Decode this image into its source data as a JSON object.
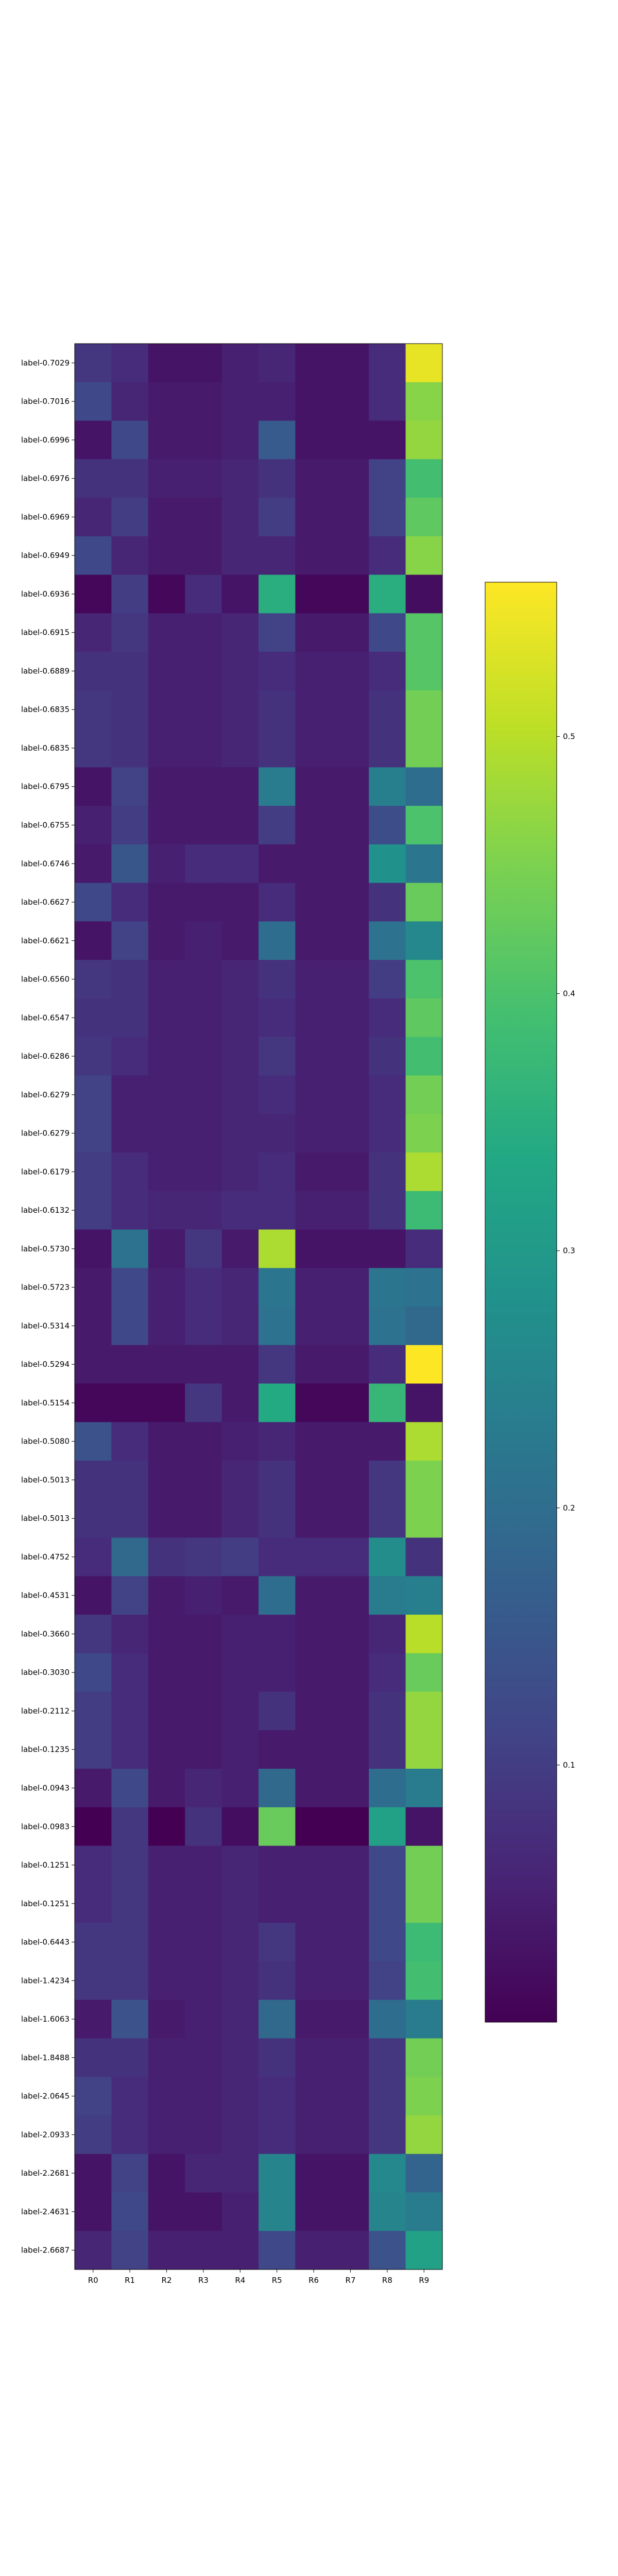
{
  "chart_data": {
    "type": "heatmap",
    "colormap": "viridis",
    "vmin": 0.0,
    "vmax": 0.56,
    "colorbar_ticks": [
      0.1,
      0.2,
      0.3,
      0.4,
      0.5
    ],
    "colorbar_tick_labels": [
      "0.1",
      "0.2",
      "0.3",
      "0.4",
      "0.5"
    ],
    "columns": [
      "R0",
      "R1",
      "R2",
      "R3",
      "R4",
      "R5",
      "R6",
      "R7",
      "R8",
      "R9"
    ],
    "rows": [
      "label-0.7029",
      "label-0.7016",
      "label-0.6996",
      "label-0.6976",
      "label-0.6969",
      "label-0.6949",
      "label-0.6936",
      "label-0.6915",
      "label-0.6889",
      "label-0.6835",
      "label-0.6835",
      "label-0.6795",
      "label-0.6755",
      "label-0.6746",
      "label-0.6627",
      "label-0.6621",
      "label-0.6560",
      "label-0.6547",
      "label-0.6286",
      "label-0.6279",
      "label-0.6279",
      "label-0.6179",
      "label-0.6132",
      "label-0.5730",
      "label-0.5723",
      "label-0.5314",
      "label-0.5294",
      "label-0.5154",
      "label-0.5080",
      "label-0.5013",
      "label-0.5013",
      "label-0.4752",
      "label-0.4531",
      "label-0.3660",
      "label-0.3030",
      "label-0.2112",
      "label-0.1235",
      "label-0.0943",
      "label-0.0983",
      "label-0.1251",
      "label-0.1251",
      "label-0.6443",
      "label-1.4234",
      "label-1.6063",
      "label-1.8488",
      "label-2.0645",
      "label-2.0933",
      "label-2.2681",
      "label-2.4631",
      "label-2.6687"
    ],
    "values": [
      [
        0.09,
        0.07,
        0.03,
        0.03,
        0.05,
        0.06,
        0.03,
        0.03,
        0.07,
        0.54
      ],
      [
        0.12,
        0.06,
        0.04,
        0.04,
        0.05,
        0.05,
        0.03,
        0.03,
        0.07,
        0.46
      ],
      [
        0.03,
        0.12,
        0.04,
        0.04,
        0.05,
        0.16,
        0.03,
        0.03,
        0.03,
        0.47
      ],
      [
        0.08,
        0.08,
        0.05,
        0.05,
        0.06,
        0.08,
        0.04,
        0.04,
        0.11,
        0.39
      ],
      [
        0.06,
        0.1,
        0.04,
        0.04,
        0.06,
        0.1,
        0.04,
        0.04,
        0.11,
        0.42
      ],
      [
        0.12,
        0.06,
        0.04,
        0.04,
        0.06,
        0.06,
        0.04,
        0.04,
        0.07,
        0.46
      ],
      [
        0.01,
        0.1,
        0.01,
        0.07,
        0.03,
        0.35,
        0.01,
        0.01,
        0.35,
        0.02
      ],
      [
        0.06,
        0.09,
        0.05,
        0.05,
        0.06,
        0.11,
        0.04,
        0.04,
        0.12,
        0.41
      ],
      [
        0.08,
        0.08,
        0.05,
        0.05,
        0.06,
        0.07,
        0.05,
        0.05,
        0.07,
        0.41
      ],
      [
        0.09,
        0.08,
        0.05,
        0.05,
        0.06,
        0.08,
        0.05,
        0.05,
        0.08,
        0.44
      ],
      [
        0.09,
        0.08,
        0.05,
        0.05,
        0.06,
        0.08,
        0.05,
        0.05,
        0.08,
        0.44
      ],
      [
        0.03,
        0.11,
        0.04,
        0.04,
        0.04,
        0.23,
        0.04,
        0.04,
        0.24,
        0.2
      ],
      [
        0.05,
        0.1,
        0.04,
        0.04,
        0.04,
        0.1,
        0.04,
        0.04,
        0.13,
        0.4
      ],
      [
        0.04,
        0.15,
        0.05,
        0.07,
        0.07,
        0.04,
        0.04,
        0.04,
        0.28,
        0.22
      ],
      [
        0.12,
        0.07,
        0.04,
        0.04,
        0.04,
        0.07,
        0.04,
        0.04,
        0.08,
        0.43
      ],
      [
        0.03,
        0.11,
        0.04,
        0.05,
        0.04,
        0.2,
        0.04,
        0.04,
        0.21,
        0.26
      ],
      [
        0.09,
        0.08,
        0.05,
        0.05,
        0.06,
        0.08,
        0.05,
        0.05,
        0.1,
        0.4
      ],
      [
        0.08,
        0.08,
        0.05,
        0.05,
        0.06,
        0.07,
        0.05,
        0.05,
        0.07,
        0.42
      ],
      [
        0.09,
        0.07,
        0.05,
        0.05,
        0.06,
        0.09,
        0.05,
        0.05,
        0.08,
        0.39
      ],
      [
        0.11,
        0.05,
        0.05,
        0.05,
        0.06,
        0.07,
        0.05,
        0.05,
        0.07,
        0.44
      ],
      [
        0.11,
        0.05,
        0.05,
        0.05,
        0.06,
        0.06,
        0.05,
        0.05,
        0.07,
        0.45
      ],
      [
        0.1,
        0.07,
        0.05,
        0.05,
        0.06,
        0.07,
        0.04,
        0.04,
        0.08,
        0.49
      ],
      [
        0.1,
        0.07,
        0.06,
        0.06,
        0.07,
        0.07,
        0.05,
        0.05,
        0.08,
        0.38
      ],
      [
        0.03,
        0.21,
        0.04,
        0.09,
        0.04,
        0.49,
        0.03,
        0.03,
        0.03,
        0.07
      ],
      [
        0.04,
        0.12,
        0.05,
        0.07,
        0.06,
        0.22,
        0.05,
        0.05,
        0.22,
        0.21
      ],
      [
        0.04,
        0.12,
        0.05,
        0.07,
        0.06,
        0.21,
        0.05,
        0.05,
        0.21,
        0.19
      ],
      [
        0.04,
        0.04,
        0.04,
        0.04,
        0.04,
        0.09,
        0.04,
        0.04,
        0.07,
        0.56
      ],
      [
        0.01,
        0.01,
        0.01,
        0.09,
        0.04,
        0.34,
        0.01,
        0.01,
        0.37,
        0.03
      ],
      [
        0.14,
        0.07,
        0.04,
        0.04,
        0.05,
        0.06,
        0.04,
        0.04,
        0.04,
        0.49
      ],
      [
        0.08,
        0.08,
        0.04,
        0.04,
        0.06,
        0.08,
        0.04,
        0.04,
        0.09,
        0.45
      ],
      [
        0.08,
        0.08,
        0.04,
        0.04,
        0.06,
        0.08,
        0.04,
        0.04,
        0.09,
        0.45
      ],
      [
        0.07,
        0.19,
        0.08,
        0.09,
        0.1,
        0.07,
        0.07,
        0.07,
        0.27,
        0.08
      ],
      [
        0.03,
        0.11,
        0.04,
        0.05,
        0.04,
        0.2,
        0.04,
        0.04,
        0.23,
        0.24
      ],
      [
        0.09,
        0.06,
        0.04,
        0.04,
        0.05,
        0.05,
        0.04,
        0.04,
        0.06,
        0.5
      ],
      [
        0.12,
        0.07,
        0.04,
        0.04,
        0.05,
        0.05,
        0.04,
        0.04,
        0.07,
        0.43
      ],
      [
        0.1,
        0.07,
        0.04,
        0.04,
        0.05,
        0.08,
        0.04,
        0.04,
        0.08,
        0.47
      ],
      [
        0.1,
        0.07,
        0.04,
        0.04,
        0.05,
        0.04,
        0.04,
        0.04,
        0.08,
        0.47
      ],
      [
        0.04,
        0.12,
        0.04,
        0.06,
        0.05,
        0.19,
        0.04,
        0.04,
        0.2,
        0.23
      ],
      [
        0.0,
        0.09,
        0.0,
        0.08,
        0.02,
        0.43,
        0.0,
        0.0,
        0.32,
        0.03
      ],
      [
        0.07,
        0.09,
        0.05,
        0.05,
        0.06,
        0.05,
        0.05,
        0.05,
        0.12,
        0.44
      ],
      [
        0.07,
        0.09,
        0.05,
        0.05,
        0.06,
        0.05,
        0.05,
        0.05,
        0.12,
        0.44
      ],
      [
        0.09,
        0.09,
        0.05,
        0.05,
        0.06,
        0.09,
        0.05,
        0.05,
        0.12,
        0.38
      ],
      [
        0.09,
        0.09,
        0.05,
        0.05,
        0.06,
        0.08,
        0.05,
        0.05,
        0.11,
        0.39
      ],
      [
        0.04,
        0.14,
        0.04,
        0.05,
        0.06,
        0.19,
        0.04,
        0.04,
        0.2,
        0.23
      ],
      [
        0.08,
        0.08,
        0.05,
        0.05,
        0.06,
        0.08,
        0.05,
        0.05,
        0.09,
        0.44
      ],
      [
        0.11,
        0.07,
        0.05,
        0.05,
        0.06,
        0.07,
        0.05,
        0.05,
        0.09,
        0.45
      ],
      [
        0.1,
        0.07,
        0.05,
        0.05,
        0.06,
        0.07,
        0.05,
        0.05,
        0.09,
        0.47
      ],
      [
        0.03,
        0.11,
        0.03,
        0.06,
        0.06,
        0.25,
        0.03,
        0.03,
        0.26,
        0.18
      ],
      [
        0.03,
        0.12,
        0.03,
        0.03,
        0.05,
        0.25,
        0.03,
        0.03,
        0.25,
        0.23
      ],
      [
        0.06,
        0.11,
        0.05,
        0.05,
        0.05,
        0.12,
        0.05,
        0.05,
        0.14,
        0.32
      ]
    ]
  }
}
